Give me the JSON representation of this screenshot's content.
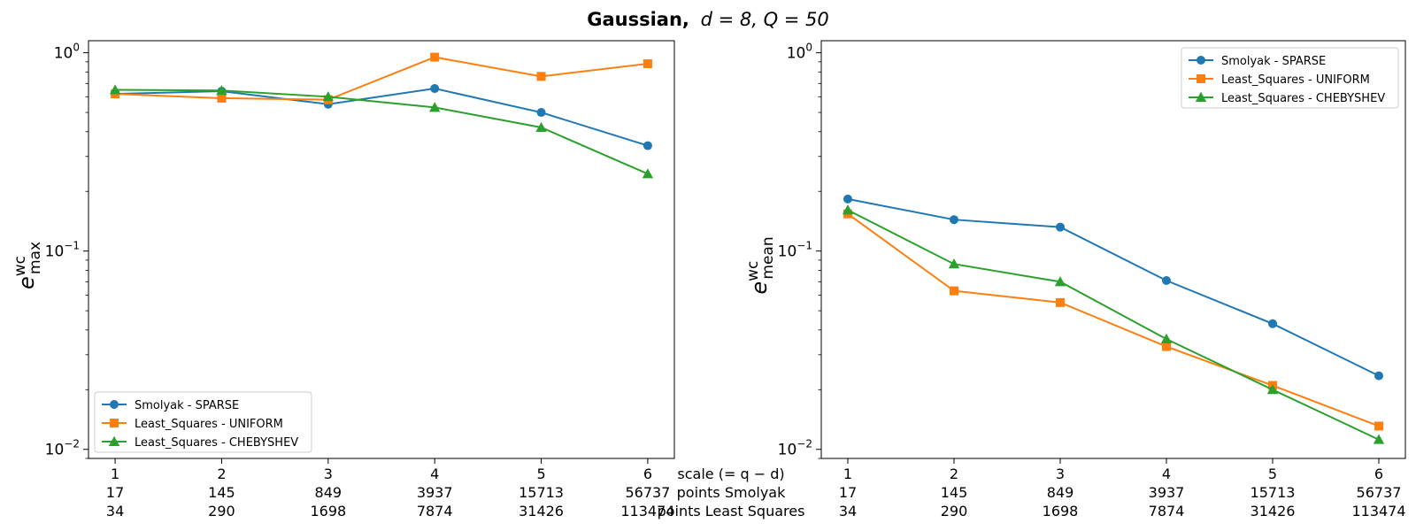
{
  "figure": {
    "title_bold": "Gaussian,",
    "title_math": "d = 8, Q = 50"
  },
  "bottom_labels": {
    "line1": "scale (= q − d)",
    "line2": "points Smolyak",
    "line3": "points Least Squares"
  },
  "chart_data": [
    {
      "type": "line",
      "panel": "left",
      "ylabel_base": "e",
      "ylabel_sup": "wc",
      "ylabel_sub": "max",
      "yscale": "log",
      "ylim": [
        0.009,
        1.15
      ],
      "yticks": [
        {
          "value": 1.0,
          "base": "10",
          "exp": "0"
        },
        {
          "value": 0.1,
          "base": "10",
          "exp": "−1"
        },
        {
          "value": 0.01,
          "base": "10",
          "exp": "−2"
        }
      ],
      "x": [
        1,
        2,
        3,
        4,
        5,
        6
      ],
      "xlim": [
        0.75,
        6.25
      ],
      "xtick_rows": [
        [
          "1",
          "2",
          "3",
          "4",
          "5",
          "6"
        ],
        [
          "17",
          "145",
          "849",
          "3937",
          "15713",
          "56737"
        ],
        [
          "34",
          "290",
          "1698",
          "7874",
          "31426",
          "113474"
        ]
      ],
      "legend_loc": "lower-left",
      "grid": false,
      "series": [
        {
          "name": "Smolyak - SPARSE",
          "color": "#1f77b4",
          "marker": "circle",
          "values": [
            0.62,
            0.64,
            0.55,
            0.66,
            0.5,
            0.34
          ]
        },
        {
          "name": "Least_Squares - UNIFORM",
          "color": "#ff7f0e",
          "marker": "square",
          "values": [
            0.62,
            0.59,
            0.58,
            0.95,
            0.76,
            0.88
          ]
        },
        {
          "name": "Least_Squares - CHEBYSHEV",
          "color": "#2ca02c",
          "marker": "triangle",
          "values": [
            0.65,
            0.645,
            0.6,
            0.53,
            0.42,
            0.245
          ]
        }
      ]
    },
    {
      "type": "line",
      "panel": "right",
      "ylabel_base": "e",
      "ylabel_sup": "wc",
      "ylabel_sub": "mean",
      "yscale": "log",
      "ylim": [
        0.009,
        1.15
      ],
      "yticks": [
        {
          "value": 1.0,
          "base": "10",
          "exp": "0"
        },
        {
          "value": 0.1,
          "base": "10",
          "exp": "−1"
        },
        {
          "value": 0.01,
          "base": "10",
          "exp": "−2"
        }
      ],
      "x": [
        1,
        2,
        3,
        4,
        5,
        6
      ],
      "xlim": [
        0.75,
        6.25
      ],
      "xtick_rows": [
        [
          "1",
          "2",
          "3",
          "4",
          "5",
          "6"
        ],
        [
          "17",
          "145",
          "849",
          "3937",
          "15713",
          "56737"
        ],
        [
          "34",
          "290",
          "1698",
          "7874",
          "31426",
          "113474"
        ]
      ],
      "legend_loc": "upper-right",
      "grid": false,
      "series": [
        {
          "name": "Smolyak - SPARSE",
          "color": "#1f77b4",
          "marker": "circle",
          "values": [
            0.183,
            0.144,
            0.132,
            0.071,
            0.043,
            0.0235
          ]
        },
        {
          "name": "Least_Squares - UNIFORM",
          "color": "#ff7f0e",
          "marker": "square",
          "values": [
            0.154,
            0.063,
            0.055,
            0.033,
            0.021,
            0.0131
          ]
        },
        {
          "name": "Least_Squares - CHEBYSHEV",
          "color": "#2ca02c",
          "marker": "triangle",
          "values": [
            0.161,
            0.086,
            0.07,
            0.036,
            0.02,
            0.0112
          ]
        }
      ]
    }
  ]
}
